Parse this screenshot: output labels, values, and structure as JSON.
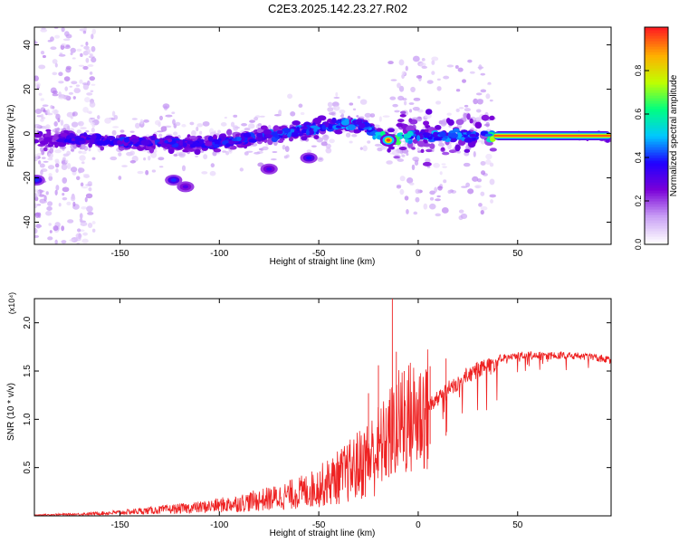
{
  "title": "C2E3.2025.142.23.27.R02",
  "colors": {
    "snr_line": "#ee2222",
    "spectrogram_palette": [
      "#ffffff",
      "#c9a0f5",
      "#7a00d8",
      "#2000ff",
      "#00c8ff",
      "#00ff80",
      "#c0ff00",
      "#ffb000",
      "#ff2020"
    ]
  },
  "chart_data": [
    {
      "type": "heatmap",
      "name": "spectrogram",
      "xlabel": "Height of straight line (km)",
      "ylabel": "Frequency (Hz)",
      "xlim": [
        -193,
        97
      ],
      "ylim": [
        -50,
        48
      ],
      "x_ticks": [
        -150,
        -100,
        -50,
        0,
        50
      ],
      "y_ticks": [
        -40,
        -20,
        0,
        20,
        40
      ],
      "grid": false,
      "colorbar": {
        "label": "Normalized spectral amplitude",
        "range": [
          0,
          1
        ],
        "ticks": [
          0.0,
          0.2,
          0.4,
          0.6,
          0.8
        ]
      },
      "ridge": [
        {
          "x": -190,
          "y": -3,
          "amp": 0.25
        },
        {
          "x": -175,
          "y": -2,
          "amp": 0.35
        },
        {
          "x": -160,
          "y": -3,
          "amp": 0.35
        },
        {
          "x": -145,
          "y": -4,
          "amp": 0.38
        },
        {
          "x": -130,
          "y": -4,
          "amp": 0.38
        },
        {
          "x": -115,
          "y": -5,
          "amp": 0.35
        },
        {
          "x": -100,
          "y": -4,
          "amp": 0.38
        },
        {
          "x": -85,
          "y": -2,
          "amp": 0.4
        },
        {
          "x": -70,
          "y": 0,
          "amp": 0.42
        },
        {
          "x": -55,
          "y": 2,
          "amp": 0.42
        },
        {
          "x": -40,
          "y": 4,
          "amp": 0.45
        },
        {
          "x": -30,
          "y": 5,
          "amp": 0.45
        },
        {
          "x": -22,
          "y": 1,
          "amp": 0.45
        },
        {
          "x": -15,
          "y": -3,
          "amp": 0.7
        },
        {
          "x": 0,
          "y": -1,
          "amp": 0.45
        },
        {
          "x": 15,
          "y": -1,
          "amp": 0.45
        },
        {
          "x": 30,
          "y": -1,
          "amp": 0.45
        },
        {
          "x": 40,
          "y": -1,
          "amp": 0.75
        },
        {
          "x": 55,
          "y": -1,
          "amp": 0.9
        },
        {
          "x": 70,
          "y": -1,
          "amp": 0.95
        },
        {
          "x": 85,
          "y": -1,
          "amp": 0.95
        },
        {
          "x": 95,
          "y": -1,
          "amp": 0.95
        }
      ],
      "side_features": [
        {
          "x": -192,
          "y": -21,
          "amp": 0.4
        },
        {
          "x": -123,
          "y": -21,
          "amp": 0.4
        },
        {
          "x": -117,
          "y": -24,
          "amp": 0.3
        },
        {
          "x": -75,
          "y": -16,
          "amp": 0.32
        },
        {
          "x": -55,
          "y": -11,
          "amp": 0.38
        }
      ]
    },
    {
      "type": "line",
      "name": "snr",
      "xlabel": "Height of straight line (km)",
      "ylabel": "SNR (10 * v/v)",
      "y_multiplier": "(x10⁴)",
      "xlim": [
        -193,
        97
      ],
      "ylim": [
        0,
        2.25
      ],
      "x_ticks": [
        -150,
        -100,
        -50,
        0,
        50
      ],
      "y_ticks": [
        0.5,
        1.0,
        1.5,
        2.0
      ],
      "grid": false,
      "envelope_x": [
        -193,
        -170,
        -150,
        -130,
        -110,
        -90,
        -70,
        -55,
        -45,
        -35,
        -25,
        -18,
        -12,
        -8,
        -4,
        0,
        5,
        10,
        15,
        20,
        25,
        30,
        35,
        40,
        50,
        60,
        70,
        80,
        90,
        97
      ],
      "envelope_y": [
        0.01,
        0.02,
        0.04,
        0.07,
        0.1,
        0.15,
        0.22,
        0.3,
        0.4,
        0.52,
        0.68,
        0.82,
        1.0,
        1.1,
        1.13,
        1.15,
        1.22,
        1.32,
        1.4,
        1.48,
        1.55,
        1.6,
        1.63,
        1.67,
        1.7,
        1.7,
        1.7,
        1.7,
        1.68,
        1.65
      ],
      "spikes": [
        {
          "x": -13,
          "y": 2.25
        },
        {
          "x": -20,
          "y": 1.56
        },
        {
          "x": -25,
          "y": 1.27
        },
        {
          "x": -11,
          "y": 1.7
        },
        {
          "x": -7,
          "y": 1.5
        },
        {
          "x": 6,
          "y": 1.55
        },
        {
          "x": 14,
          "y": 1.63
        }
      ]
    }
  ]
}
